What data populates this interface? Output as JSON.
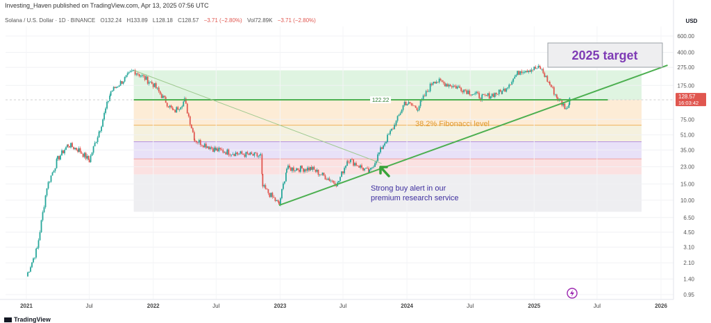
{
  "header": {
    "publisher_line": "Investing_Haven published on TradingView.com, Apr 13, 2025 07:56 UTC",
    "symbol": "Solana / U.S. Dollar · 1D · BINANCE",
    "ohlc": {
      "open": "O132.24",
      "high": "H133.89",
      "low": "L128.18",
      "close": "C128.57",
      "change": "−3.71 (−2.80%)"
    },
    "volume": {
      "label": "Vol72.89K",
      "change": "−3.71 (−2.80%)"
    }
  },
  "footer": {
    "logo_text": "TradingView"
  },
  "colors": {
    "green_line": "#4caf50",
    "bearish": "#e0564f",
    "bullish": "#26a69a",
    "fib_orange": "#f0b25a",
    "annotation_purple": "#7e3bb5",
    "alert_blue": "#3d2e9e"
  },
  "chart_data": {
    "type": "candlestick",
    "y_scale": "log",
    "y_axis_label": "USD",
    "y_ticks": [
      "600.00",
      "400.00",
      "275.00",
      "175.00",
      "75.00",
      "51.00",
      "35.00",
      "23.00",
      "15.00",
      "10.00",
      "6.50",
      "4.50",
      "3.10",
      "2.10",
      "1.40",
      "0.95"
    ],
    "x_ticks": [
      "2021",
      "Jul",
      "2022",
      "Jul",
      "2023",
      "Jul",
      "2024",
      "Jul",
      "2025",
      "Jul",
      "2026"
    ],
    "last_price": {
      "value": "128.57",
      "countdown": "16:03:42"
    },
    "series": [
      {
        "points": [
          [
            "2021-01-01",
            1.5
          ],
          [
            "2021-02-01",
            3.0
          ],
          [
            "2021-03-01",
            14
          ],
          [
            "2021-04-01",
            28
          ],
          [
            "2021-05-01",
            40
          ],
          [
            "2021-06-01",
            35
          ],
          [
            "2021-07-01",
            27
          ],
          [
            "2021-08-01",
            60
          ],
          [
            "2021-09-01",
            150
          ],
          [
            "2021-11-06",
            255
          ],
          [
            "2022-01-01",
            180
          ],
          [
            "2022-03-01",
            90
          ],
          [
            "2022-04-01",
            120
          ],
          [
            "2022-05-01",
            45
          ],
          [
            "2022-07-01",
            35
          ],
          [
            "2022-09-01",
            32
          ],
          [
            "2022-11-06",
            30
          ],
          [
            "2022-11-12",
            14
          ],
          [
            "2022-12-29",
            9.0
          ],
          [
            "2023-01-20",
            22
          ],
          [
            "2023-04-01",
            22
          ],
          [
            "2023-06-15",
            15
          ],
          [
            "2023-07-15",
            28
          ],
          [
            "2023-09-15",
            20
          ],
          [
            "2023-10-25",
            40
          ],
          [
            "2023-12-01",
            70
          ],
          [
            "2023-12-25",
            115
          ],
          [
            "2024-02-01",
            100
          ],
          [
            "2024-03-18",
            200
          ],
          [
            "2024-06-01",
            165
          ],
          [
            "2024-08-05",
            130
          ],
          [
            "2024-10-01",
            150
          ],
          [
            "2024-11-22",
            255
          ],
          [
            "2025-01-19",
            270
          ],
          [
            "2025-02-15",
            180
          ],
          [
            "2025-03-10",
            125
          ],
          [
            "2025-04-07",
            96
          ],
          [
            "2025-04-13",
            128
          ]
        ]
      }
    ],
    "horizontal_line": {
      "value": 122.22,
      "label": "122.22"
    },
    "fib_zones": [
      {
        "from": 255,
        "to": 122.22,
        "color": "#d9f2dc"
      },
      {
        "from": 122.22,
        "to": 65,
        "color": "#fde9cf"
      },
      {
        "from": 65,
        "to": 43,
        "color": "#f3efd8"
      },
      {
        "from": 43,
        "to": 28,
        "color": "#e4dcf7"
      },
      {
        "from": 28,
        "to": 19,
        "color": "#fadcdc"
      },
      {
        "from": 19,
        "to": 7.5,
        "color": "#ebebee"
      }
    ],
    "fib_lines": [
      {
        "value": 65,
        "color": "#f0b25a"
      },
      {
        "value": 43,
        "color": "#b58fe0"
      },
      {
        "value": 28,
        "color": "#f2a1a1"
      }
    ],
    "trendlines": [
      {
        "from": [
          "2022-12-29",
          8.8
        ],
        "to": [
          "2026-01-20",
          290
        ],
        "color": "#4caf50",
        "width": 2
      },
      {
        "from": [
          "2021-11-06",
          255
        ],
        "to": [
          "2023-10-20",
          25
        ],
        "color": "#9ec98f",
        "width": 1
      }
    ],
    "annotations": {
      "target_label": "2025 target",
      "fib_label": "38.2% Fibonacci level",
      "alert_line1": "Strong buy alert in our",
      "alert_line2": "premium research service"
    }
  }
}
